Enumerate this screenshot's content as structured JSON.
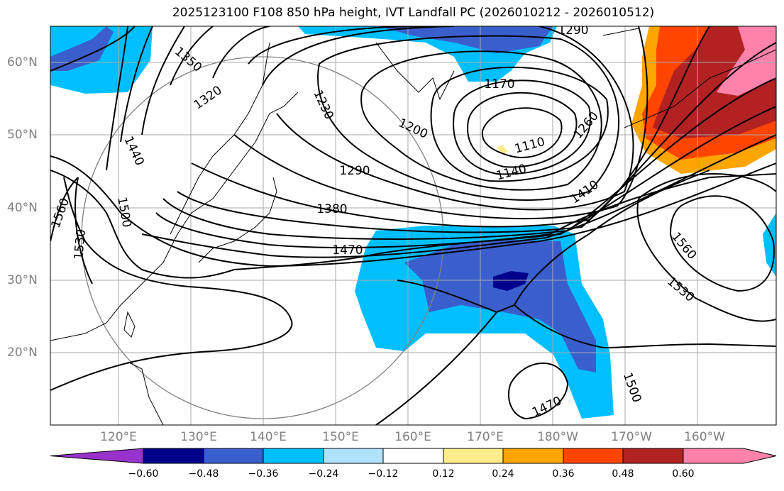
{
  "title": "2025123100 F108 850 hPa height, IVT Landfall PC (2026010212 - 2026010512)",
  "lat_labels": [
    "60°N",
    "50°N",
    "40°N",
    "30°N",
    "20°N"
  ],
  "lon_labels": [
    "120°E",
    "130°E",
    "140°E",
    "150°E",
    "160°E",
    "170°E",
    "180°W",
    "170°W",
    "160°W"
  ],
  "contour_labels": [
    "1350",
    "1320",
    "1230",
    "1170",
    "1290",
    "1200",
    "1260",
    "1110",
    "1140",
    "1290",
    "1380",
    "1410",
    "1470",
    "1440",
    "1500",
    "1560",
    "1530",
    "1560",
    "1530",
    "1500",
    "1470"
  ],
  "colorbar": {
    "colors": [
      "#9932CC",
      "#00008B",
      "#3A5FCD",
      "#00BFFF",
      "#B0E2FF",
      "#FFFFFF",
      "#FFEC8B",
      "#FFA500",
      "#FF4500",
      "#B22222",
      "#FF82AB"
    ],
    "ticks": [
      "−0.60",
      "−0.48",
      "−0.36",
      "−0.24",
      "−0.12",
      "0.12",
      "0.24",
      "0.36",
      "0.48",
      "0.60"
    ]
  }
}
